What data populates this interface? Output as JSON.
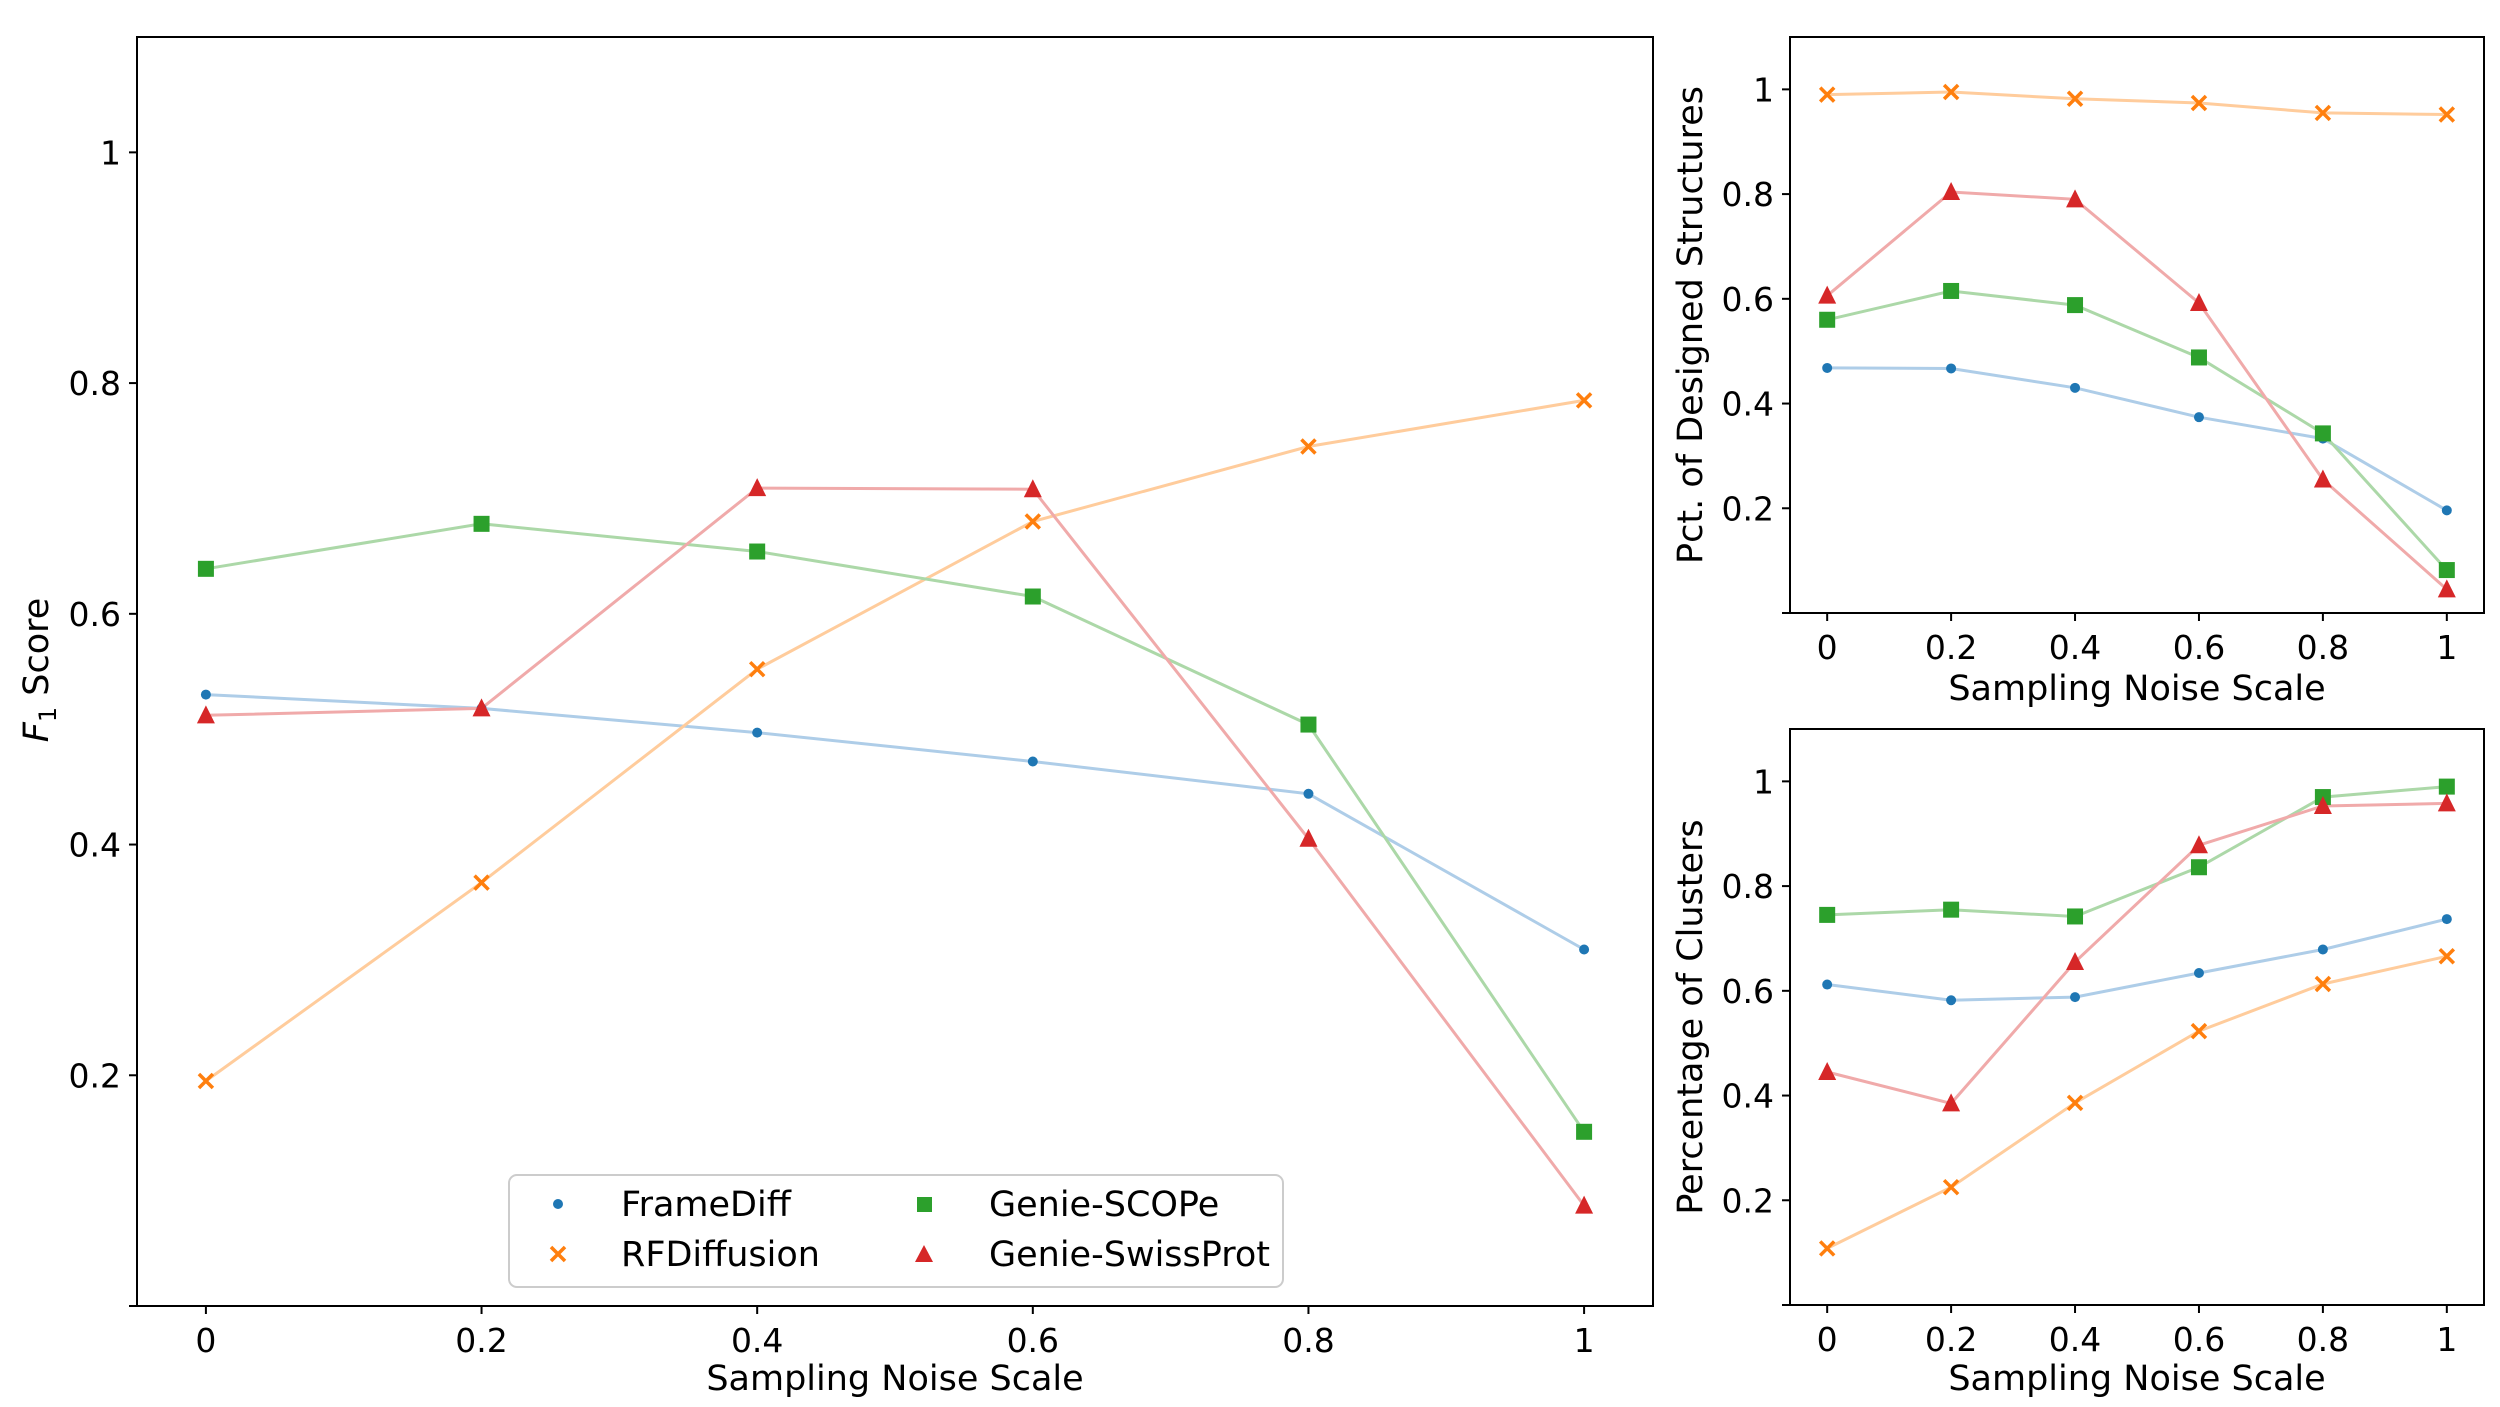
{
  "series_styles": [
    {
      "name": "FrameDiff",
      "marker": "dot",
      "marker_color": "#1f77b4",
      "line_color": "#aecde8"
    },
    {
      "name": "RFDiffusion",
      "marker": "x",
      "marker_color": "#ff7f0e",
      "line_color": "#ffcc9c"
    },
    {
      "name": "Genie-SCOPe",
      "marker": "square",
      "marker_color": "#2ca02c",
      "line_color": "#acd8a8"
    },
    {
      "name": "Genie-SwissProt",
      "marker": "triangle",
      "marker_color": "#d62728",
      "line_color": "#f0aaaa"
    }
  ],
  "chart_data": [
    {
      "type": "line",
      "x": [
        0,
        0.2,
        0.4,
        0.6,
        0.8,
        1
      ],
      "xticks": [
        "0",
        "0.2",
        "0.4",
        "0.6",
        "0.8",
        "1"
      ],
      "yticks": [
        "0.2",
        "0.4",
        "0.6",
        "0.8",
        "1"
      ],
      "xlabel": "Sampling Noise Scale",
      "ylabel_main": "F",
      "ylabel_sub": "1",
      "ylabel_rest": " Score",
      "xlim": [
        -0.05,
        1.05
      ],
      "ylim": [
        0.0,
        1.1
      ],
      "legend": "bottom-center",
      "series": [
        {
          "name": "FrameDiff",
          "values": [
            0.53,
            0.518,
            0.497,
            0.472,
            0.444,
            0.309
          ]
        },
        {
          "name": "RFDiffusion",
          "values": [
            0.195,
            0.367,
            0.552,
            0.68,
            0.745,
            0.785
          ]
        },
        {
          "name": "Genie-SCOPe",
          "values": [
            0.639,
            0.678,
            0.654,
            0.615,
            0.504,
            0.151
          ]
        },
        {
          "name": "Genie-SwissProt",
          "values": [
            0.512,
            0.518,
            0.709,
            0.708,
            0.405,
            0.087
          ]
        }
      ]
    },
    {
      "type": "line",
      "x": [
        0,
        0.2,
        0.4,
        0.6,
        0.8,
        1
      ],
      "xticks": [
        "0",
        "0.2",
        "0.4",
        "0.6",
        "0.8",
        "1"
      ],
      "yticks": [
        "0.2",
        "0.4",
        "0.6",
        "0.8",
        "1"
      ],
      "xlabel": "Sampling Noise Scale",
      "ylabel": "Pct. of Designed Structures",
      "xlim": [
        -0.06,
        1.06
      ],
      "ylim": [
        0.0,
        1.1
      ],
      "series": [
        {
          "name": "FrameDiff",
          "values": [
            0.468,
            0.467,
            0.43,
            0.374,
            0.333,
            0.196
          ]
        },
        {
          "name": "RFDiffusion",
          "values": [
            0.99,
            0.995,
            0.982,
            0.974,
            0.955,
            0.952
          ]
        },
        {
          "name": "Genie-SCOPe",
          "values": [
            0.56,
            0.615,
            0.588,
            0.488,
            0.343,
            0.082
          ]
        },
        {
          "name": "Genie-SwissProt",
          "values": [
            0.606,
            0.804,
            0.79,
            0.592,
            0.255,
            0.045
          ]
        }
      ]
    },
    {
      "type": "line",
      "x": [
        0,
        0.2,
        0.4,
        0.6,
        0.8,
        1
      ],
      "xticks": [
        "0",
        "0.2",
        "0.4",
        "0.6",
        "0.8",
        "1"
      ],
      "yticks": [
        "0.2",
        "0.4",
        "0.6",
        "0.8",
        "1"
      ],
      "xlabel": "Sampling Noise Scale",
      "ylabel": "Percentage of Clusters",
      "xlim": [
        -0.06,
        1.06
      ],
      "ylim": [
        0.0,
        1.1
      ],
      "series": [
        {
          "name": "FrameDiff",
          "values": [
            0.612,
            0.582,
            0.588,
            0.634,
            0.679,
            0.737
          ]
        },
        {
          "name": "RFDiffusion",
          "values": [
            0.108,
            0.225,
            0.386,
            0.523,
            0.613,
            0.666
          ]
        },
        {
          "name": "Genie-SCOPe",
          "values": [
            0.745,
            0.755,
            0.742,
            0.836,
            0.97,
            0.99
          ]
        },
        {
          "name": "Genie-SwissProt",
          "values": [
            0.445,
            0.385,
            0.655,
            0.878,
            0.953,
            0.958
          ]
        }
      ]
    }
  ]
}
